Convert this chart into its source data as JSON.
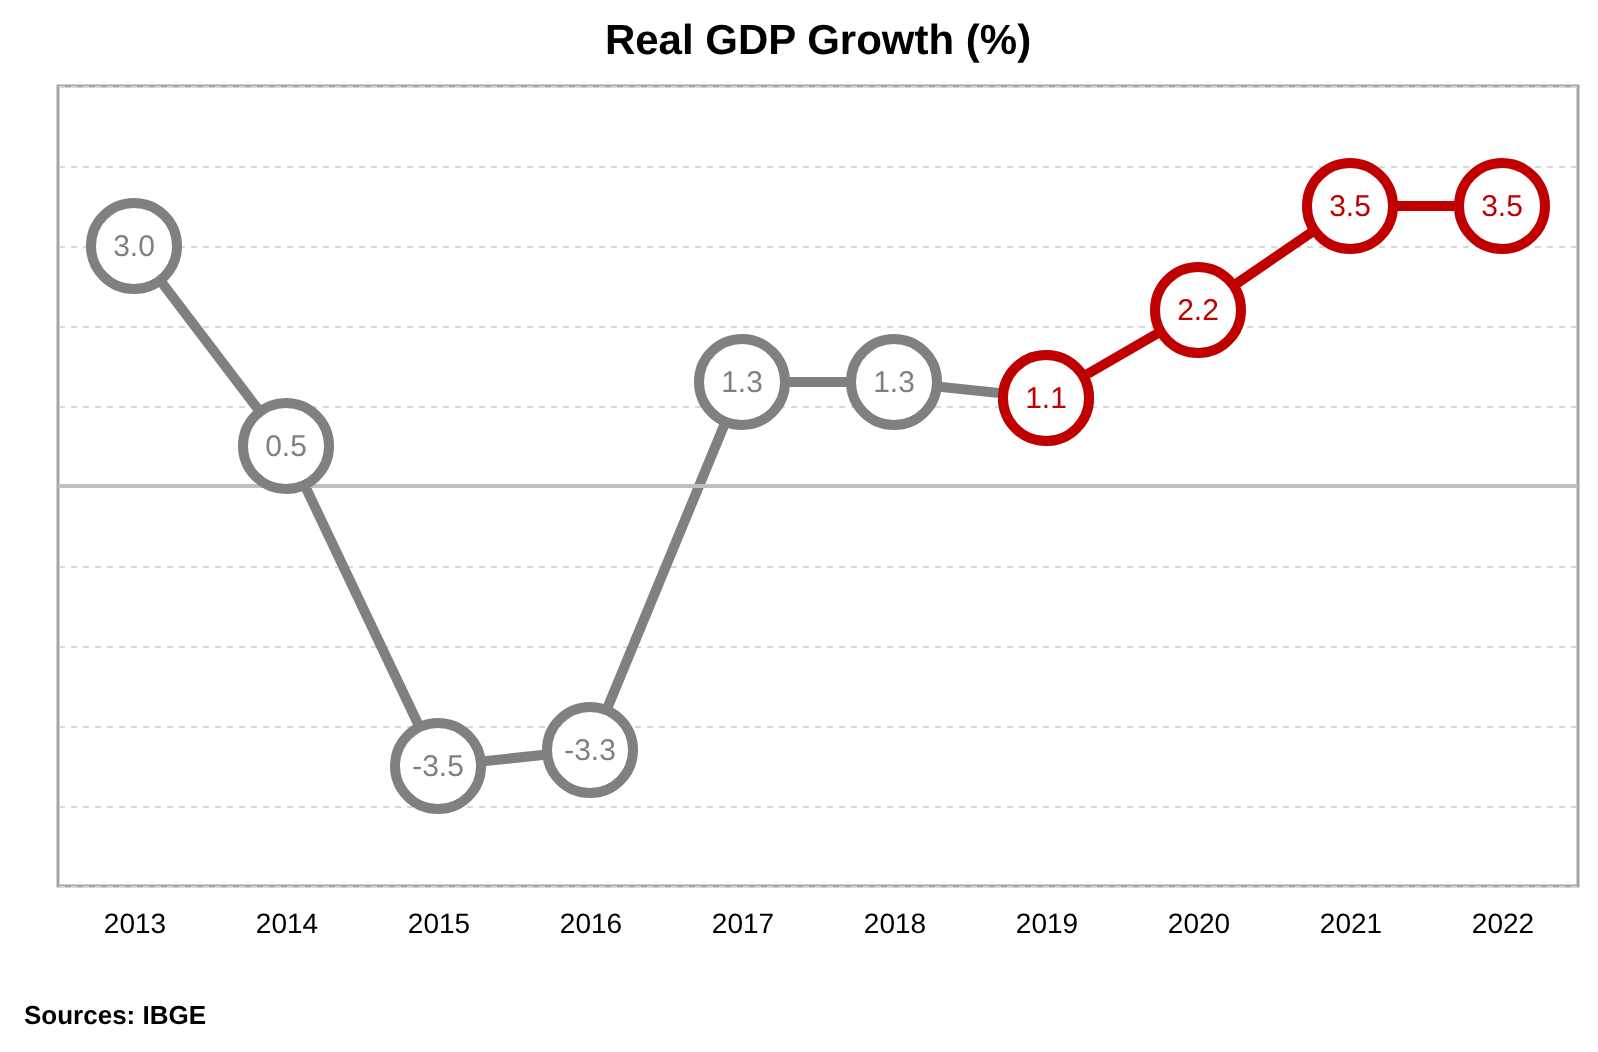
{
  "chart_data": {
    "type": "line",
    "title": "Real GDP Growth (%)",
    "categories": [
      "2013",
      "2014",
      "2015",
      "2016",
      "2017",
      "2018",
      "2019",
      "2020",
      "2021",
      "2022"
    ],
    "series": [
      {
        "color": "#808080",
        "values": [
          3.0,
          0.5,
          -3.5,
          -3.3,
          1.3,
          1.3,
          1.1,
          null,
          null,
          null
        ],
        "value_labels": [
          "3.0",
          "0.5",
          "-3.5",
          "-3.3",
          "1.3",
          "1.3",
          null,
          null,
          null,
          null
        ]
      },
      {
        "color": "#c00000",
        "values": [
          null,
          null,
          null,
          null,
          null,
          null,
          1.1,
          2.2,
          3.5,
          3.5
        ],
        "value_labels": [
          null,
          null,
          null,
          null,
          null,
          null,
          "1.1",
          "2.2",
          "3.5",
          "3.5"
        ]
      }
    ],
    "ylim": [
      -5,
      5
    ],
    "tick_labels": "x",
    "grid": "y",
    "marker": "circle",
    "line_style": "solid",
    "ref_lines": [
      {
        "axis": "y",
        "value": 0,
        "color": "#bfbfbf"
      }
    ],
    "annotations": [
      "Sources: IBGE"
    ]
  }
}
